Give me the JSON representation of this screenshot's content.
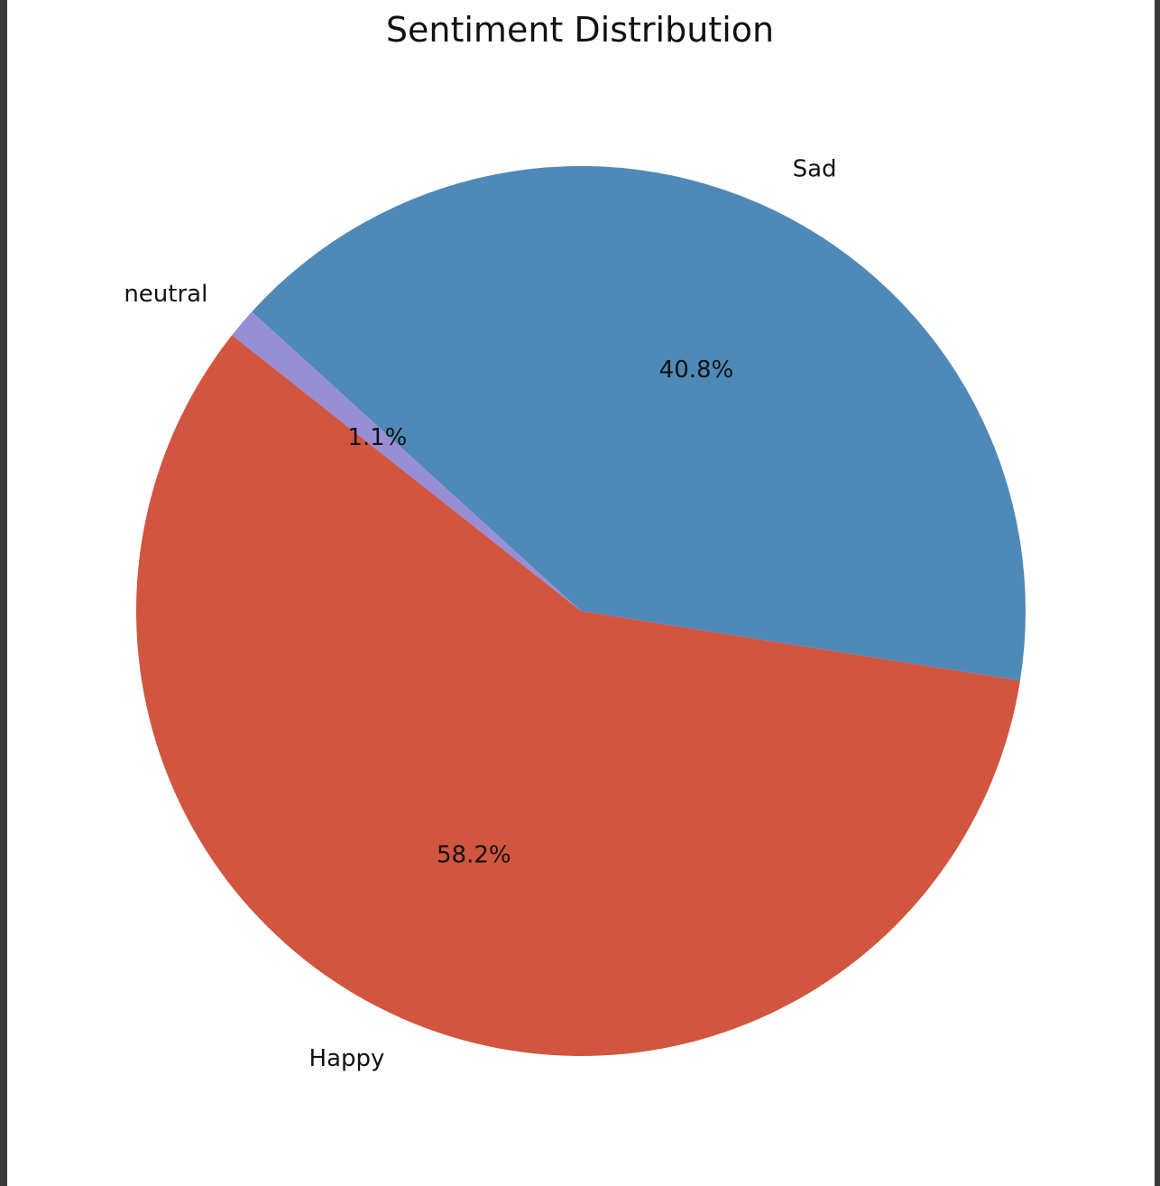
{
  "chart_data": {
    "type": "pie",
    "title": "Sentiment Distribution",
    "slices": [
      {
        "label": "Sad",
        "value": 40.8,
        "pct_label": "40.8%",
        "color": "#4e89b8"
      },
      {
        "label": "neutral",
        "value": 1.1,
        "pct_label": "1.1%",
        "color": "#988ed5"
      },
      {
        "label": "Happy",
        "value": 58.2,
        "pct_label": "58.2%",
        "color": "#d1553f"
      }
    ],
    "start_angle_deg": -9,
    "direction": "counterclockwise"
  }
}
